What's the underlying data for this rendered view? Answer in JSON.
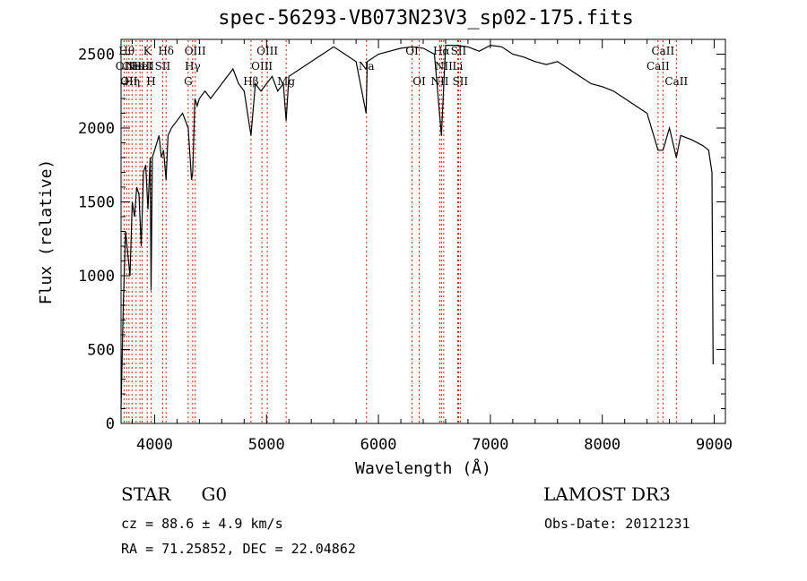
{
  "chart_data": {
    "type": "line",
    "title": "spec-56293-VB073N23V3_sp02-175.fits",
    "xlabel": "Wavelength (Å)",
    "ylabel": "Flux (relative)",
    "xlim": [
      3700,
      9100
    ],
    "ylim": [
      0,
      2600
    ],
    "xticks": [
      4000,
      5000,
      6000,
      7000,
      8000,
      9000
    ],
    "yticks": [
      0,
      500,
      1000,
      1500,
      2000,
      2500
    ],
    "xtick_labels": [
      "4000",
      "5000",
      "6000",
      "7000",
      "8000",
      "9000"
    ],
    "ytick_labels": [
      "0",
      "500",
      "1000",
      "1500",
      "2000",
      "2500"
    ],
    "series": [
      {
        "name": "flux",
        "x": [
          3700,
          3720,
          3740,
          3760,
          3780,
          3800,
          3820,
          3840,
          3860,
          3880,
          3900,
          3920,
          3940,
          3960,
          3968,
          3980,
          4000,
          4020,
          4040,
          4060,
          4080,
          4102,
          4120,
          4150,
          4200,
          4250,
          4300,
          4330,
          4340,
          4360,
          4380,
          4400,
          4450,
          4500,
          4550,
          4600,
          4650,
          4700,
          4750,
          4800,
          4861,
          4900,
          4950,
          5000,
          5050,
          5100,
          5150,
          5175,
          5200,
          5300,
          5400,
          5500,
          5600,
          5700,
          5800,
          5890,
          5900,
          6000,
          6100,
          6200,
          6300,
          6400,
          6500,
          6563,
          6600,
          6700,
          6800,
          6900,
          7000,
          7100,
          7200,
          7300,
          7400,
          7500,
          7600,
          7700,
          7800,
          7900,
          8000,
          8100,
          8200,
          8300,
          8400,
          8498,
          8542,
          8600,
          8662,
          8700,
          8800,
          8900,
          8950,
          8980,
          8990
        ],
        "values": [
          100,
          800,
          1300,
          1150,
          1000,
          1500,
          1400,
          1600,
          1550,
          1200,
          1700,
          1750,
          1450,
          1800,
          900,
          1800,
          1850,
          1900,
          1950,
          1800,
          1850,
          1650,
          1950,
          2000,
          2050,
          2100,
          2000,
          1650,
          1700,
          2200,
          2150,
          2200,
          2250,
          2200,
          2250,
          2300,
          2350,
          2400,
          2300,
          2250,
          1950,
          2300,
          2250,
          2300,
          2350,
          2250,
          2300,
          2050,
          2350,
          2400,
          2450,
          2500,
          2550,
          2500,
          2450,
          2100,
          2450,
          2500,
          2520,
          2540,
          2550,
          2540,
          2500,
          1950,
          2560,
          2560,
          2550,
          2520,
          2560,
          2550,
          2500,
          2480,
          2450,
          2430,
          2450,
          2400,
          2350,
          2300,
          2280,
          2250,
          2200,
          2150,
          2100,
          1850,
          1850,
          2000,
          1800,
          1950,
          1920,
          1880,
          1850,
          1700,
          400
        ]
      }
    ],
    "lines": [
      {
        "wl": 3727,
        "label": "OII",
        "row": 2
      },
      {
        "wl": 3750,
        "label": "Hθ",
        "row": 1
      },
      {
        "wl": 3771,
        "label": "OII",
        "row": 3
      },
      {
        "wl": 3798,
        "label": "Hη",
        "row": 3
      },
      {
        "wl": 3835,
        "label": "Hε",
        "row": 2
      },
      {
        "wl": 3869,
        "label": "NeIII",
        "row": 2
      },
      {
        "wl": 3889,
        "label": "HeI",
        "row": 2
      },
      {
        "wl": 3934,
        "label": "K",
        "row": 1
      },
      {
        "wl": 3968,
        "label": "H",
        "row": 3
      },
      {
        "wl": 4072,
        "label": "SII",
        "row": 2
      },
      {
        "wl": 4102,
        "label": "Hδ",
        "row": 1
      },
      {
        "wl": 4300,
        "label": "G",
        "row": 3
      },
      {
        "wl": 4340,
        "label": "Hγ",
        "row": 2
      },
      {
        "wl": 4363,
        "label": "OIII",
        "row": 1
      },
      {
        "wl": 4861,
        "label": "Hβ",
        "row": 3
      },
      {
        "wl": 4959,
        "label": "OIII",
        "row": 2
      },
      {
        "wl": 5007,
        "label": "OIII",
        "row": 1
      },
      {
        "wl": 5175,
        "label": "Mg",
        "row": 3
      },
      {
        "wl": 5893,
        "label": "Na",
        "row": 2
      },
      {
        "wl": 6300,
        "label": "OI",
        "row": 1
      },
      {
        "wl": 6364,
        "label": "OI",
        "row": 3
      },
      {
        "wl": 6548,
        "label": "NII",
        "row": 3
      },
      {
        "wl": 6563,
        "label": "Hα",
        "row": 1
      },
      {
        "wl": 6583,
        "label": "NII",
        "row": 2
      },
      {
        "wl": 6708,
        "label": "Li",
        "row": 2
      },
      {
        "wl": 6716,
        "label": "SII",
        "row": 1
      },
      {
        "wl": 6731,
        "label": "SII",
        "row": 3
      },
      {
        "wl": 8498,
        "label": "CaII",
        "row": 2
      },
      {
        "wl": 8542,
        "label": "CaII",
        "row": 1
      },
      {
        "wl": 8662,
        "label": "CaII",
        "row": 3
      }
    ]
  },
  "info": {
    "object_class": "STAR",
    "subclass": "G0",
    "survey": "LAMOST DR3",
    "redshift": "cz = 88.6 ± 4.9 km/s",
    "obs_date": "Obs-Date: 20121231",
    "coords": "RA =  71.25852, DEC =  22.04862"
  }
}
